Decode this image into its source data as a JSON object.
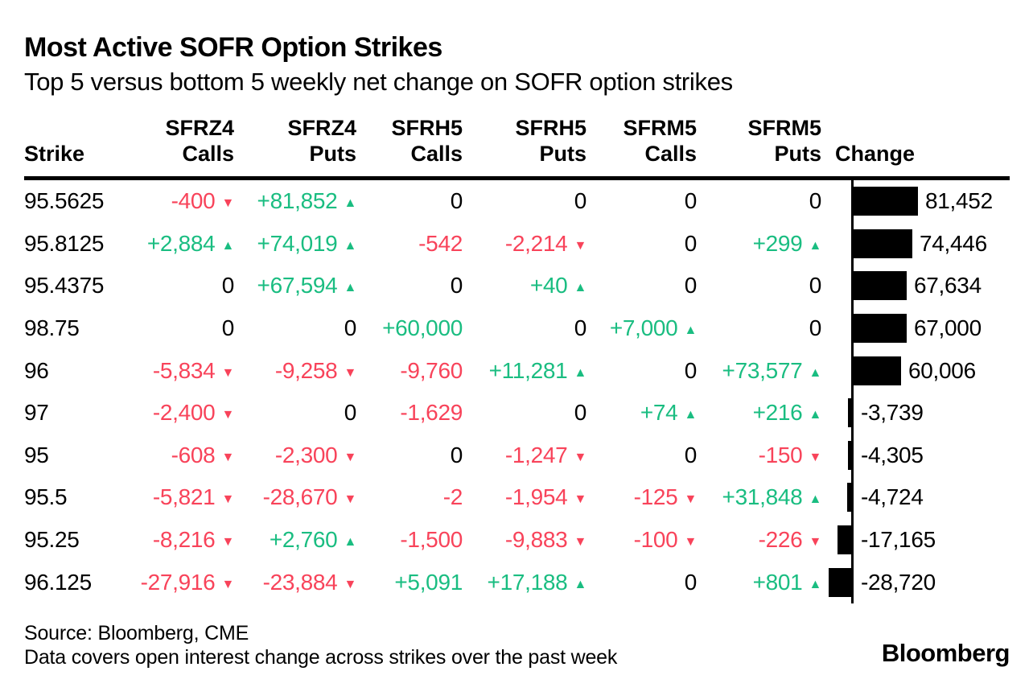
{
  "title": "Most Active SOFR Option Strikes",
  "subtitle": "Top 5 versus bottom 5 weekly net change on SOFR option strikes",
  "footer": {
    "source": "Source: Bloomberg, CME",
    "note": "Data covers open interest change across strikes over the past week",
    "logo": "Bloomberg"
  },
  "colors": {
    "positive": "#1abd81",
    "negative": "#f8435a",
    "bar": "#000000",
    "text": "#000000"
  },
  "columns": [
    {
      "id": "strike",
      "line1": "",
      "line2": "Strike"
    },
    {
      "id": "sfrz4-calls",
      "line1": "SFRZ4",
      "line2": "Calls"
    },
    {
      "id": "sfrz4-puts",
      "line1": "SFRZ4",
      "line2": "Puts"
    },
    {
      "id": "sfrh5-calls",
      "line1": "SFRH5",
      "line2": "Calls"
    },
    {
      "id": "sfrh5-puts",
      "line1": "SFRH5",
      "line2": "Puts"
    },
    {
      "id": "sfrm5-calls",
      "line1": "SFRM5",
      "line2": "Calls"
    },
    {
      "id": "sfrm5-puts",
      "line1": "SFRM5",
      "line2": "Puts"
    },
    {
      "id": "change",
      "line1": "",
      "line2": "Change"
    }
  ],
  "rows": [
    {
      "strike": "95.5625",
      "cells": [
        {
          "text": "-400",
          "arrow": "down"
        },
        {
          "text": "+81,852",
          "arrow": "up"
        },
        {
          "text": "0",
          "arrow": ""
        },
        {
          "text": "0",
          "arrow": ""
        },
        {
          "text": "0",
          "arrow": ""
        },
        {
          "text": "0",
          "arrow": ""
        }
      ],
      "change": {
        "label": "81,452",
        "value": 81452
      }
    },
    {
      "strike": "95.8125",
      "cells": [
        {
          "text": "+2,884",
          "arrow": "up"
        },
        {
          "text": "+74,019",
          "arrow": "up"
        },
        {
          "text": "-542",
          "arrow": ""
        },
        {
          "text": "-2,214",
          "arrow": "down"
        },
        {
          "text": "0",
          "arrow": ""
        },
        {
          "text": "+299",
          "arrow": "up"
        }
      ],
      "change": {
        "label": "74,446",
        "value": 74446
      }
    },
    {
      "strike": "95.4375",
      "cells": [
        {
          "text": "0",
          "arrow": ""
        },
        {
          "text": "+67,594",
          "arrow": "up"
        },
        {
          "text": "0",
          "arrow": ""
        },
        {
          "text": "+40",
          "arrow": "up"
        },
        {
          "text": "0",
          "arrow": ""
        },
        {
          "text": "0",
          "arrow": ""
        }
      ],
      "change": {
        "label": "67,634",
        "value": 67634
      }
    },
    {
      "strike": "98.75",
      "cells": [
        {
          "text": "0",
          "arrow": ""
        },
        {
          "text": "0",
          "arrow": ""
        },
        {
          "text": "+60,000",
          "arrow": ""
        },
        {
          "text": "0",
          "arrow": ""
        },
        {
          "text": "+7,000",
          "arrow": "up"
        },
        {
          "text": "0",
          "arrow": ""
        }
      ],
      "change": {
        "label": "67,000",
        "value": 67000
      }
    },
    {
      "strike": "96",
      "cells": [
        {
          "text": "-5,834",
          "arrow": "down"
        },
        {
          "text": "-9,258",
          "arrow": "down"
        },
        {
          "text": "-9,760",
          "arrow": ""
        },
        {
          "text": "+11,281",
          "arrow": "up"
        },
        {
          "text": "0",
          "arrow": ""
        },
        {
          "text": "+73,577",
          "arrow": "up"
        }
      ],
      "change": {
        "label": "60,006",
        "value": 60006
      }
    },
    {
      "strike": "97",
      "cells": [
        {
          "text": "-2,400",
          "arrow": "down"
        },
        {
          "text": "0",
          "arrow": ""
        },
        {
          "text": "-1,629",
          "arrow": ""
        },
        {
          "text": "0",
          "arrow": ""
        },
        {
          "text": "+74",
          "arrow": "up"
        },
        {
          "text": "+216",
          "arrow": "up"
        }
      ],
      "change": {
        "label": "-3,739",
        "value": -3739
      }
    },
    {
      "strike": "95",
      "cells": [
        {
          "text": "-608",
          "arrow": "down"
        },
        {
          "text": "-2,300",
          "arrow": "down"
        },
        {
          "text": "0",
          "arrow": ""
        },
        {
          "text": "-1,247",
          "arrow": "down"
        },
        {
          "text": "0",
          "arrow": ""
        },
        {
          "text": "-150",
          "arrow": "down"
        }
      ],
      "change": {
        "label": "-4,305",
        "value": -4305
      }
    },
    {
      "strike": "95.5",
      "cells": [
        {
          "text": "-5,821",
          "arrow": "down"
        },
        {
          "text": "-28,670",
          "arrow": "down"
        },
        {
          "text": "-2",
          "arrow": ""
        },
        {
          "text": "-1,954",
          "arrow": "down"
        },
        {
          "text": "-125",
          "arrow": "down"
        },
        {
          "text": "+31,848",
          "arrow": "up"
        }
      ],
      "change": {
        "label": "-4,724",
        "value": -4724
      }
    },
    {
      "strike": "95.25",
      "cells": [
        {
          "text": "-8,216",
          "arrow": "down"
        },
        {
          "text": "+2,760",
          "arrow": "up"
        },
        {
          "text": "-1,500",
          "arrow": ""
        },
        {
          "text": "-9,883",
          "arrow": "down"
        },
        {
          "text": "-100",
          "arrow": "down"
        },
        {
          "text": "-226",
          "arrow": "down"
        }
      ],
      "change": {
        "label": "-17,165",
        "value": -17165
      }
    },
    {
      "strike": "96.125",
      "cells": [
        {
          "text": "-27,916",
          "arrow": "down"
        },
        {
          "text": "-23,884",
          "arrow": "down"
        },
        {
          "text": "+5,091",
          "arrow": ""
        },
        {
          "text": "+17,188",
          "arrow": "up"
        },
        {
          "text": "0",
          "arrow": ""
        },
        {
          "text": "+801",
          "arrow": "up"
        }
      ],
      "change": {
        "label": "-28,720",
        "value": -28720
      }
    }
  ],
  "chart_data": {
    "type": "table",
    "title": "Most Active SOFR Option Strikes",
    "subtitle": "Top 5 versus bottom 5 weekly net change on SOFR option strikes",
    "categories": [
      "95.5625",
      "95.8125",
      "95.4375",
      "98.75",
      "96",
      "97",
      "95",
      "95.5",
      "95.25",
      "96.125"
    ],
    "series": [
      {
        "name": "SFRZ4 Calls",
        "values": [
          -400,
          2884,
          0,
          0,
          -5834,
          -2400,
          -608,
          -5821,
          -8216,
          -27916
        ]
      },
      {
        "name": "SFRZ4 Puts",
        "values": [
          81852,
          74019,
          67594,
          0,
          -9258,
          0,
          -2300,
          -28670,
          2760,
          -23884
        ]
      },
      {
        "name": "SFRH5 Calls",
        "values": [
          0,
          -542,
          0,
          60000,
          -9760,
          -1629,
          0,
          -2,
          -1500,
          5091
        ]
      },
      {
        "name": "SFRH5 Puts",
        "values": [
          0,
          -2214,
          40,
          0,
          11281,
          0,
          -1247,
          -1954,
          -9883,
          17188
        ]
      },
      {
        "name": "SFRM5 Calls",
        "values": [
          0,
          0,
          0,
          7000,
          0,
          74,
          0,
          -125,
          -100,
          0
        ]
      },
      {
        "name": "SFRM5 Puts",
        "values": [
          0,
          299,
          0,
          0,
          73577,
          216,
          -150,
          31848,
          -226,
          801
        ]
      },
      {
        "name": "Change",
        "type": "bar",
        "values": [
          81452,
          74446,
          67634,
          67000,
          60006,
          -3739,
          -4305,
          -4724,
          -17165,
          -28720
        ]
      }
    ],
    "bar_axis": {
      "max_abs": 81452,
      "zero_line": true,
      "orientation": "horizontal"
    }
  }
}
